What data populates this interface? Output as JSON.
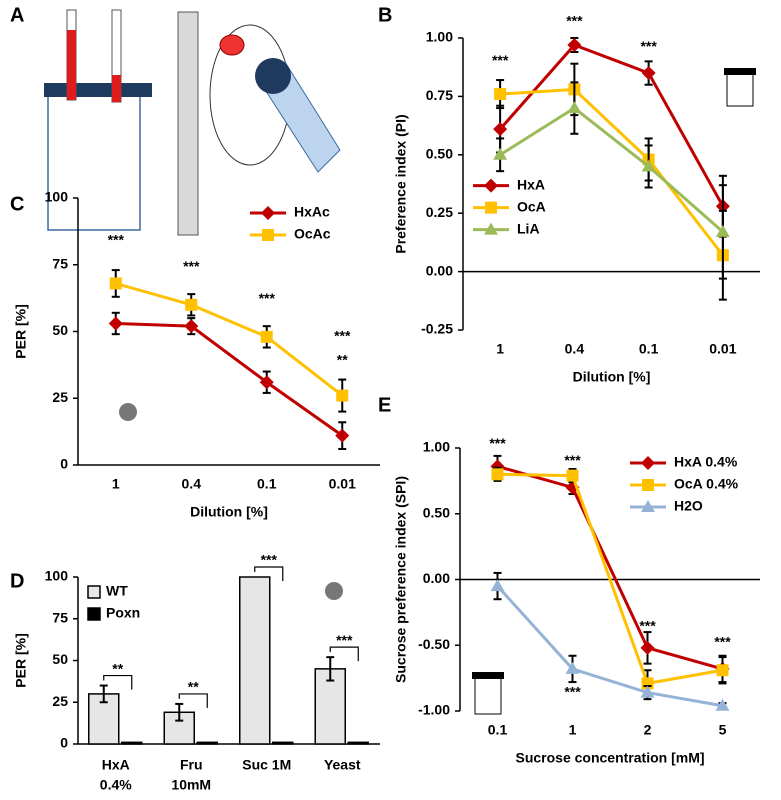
{
  "illustration": {
    "panel": "A"
  },
  "chart_data": [
    {
      "type": "line",
      "panel": "B",
      "ylabel": "Preference index (PI)",
      "xlabel": "Dilution [%]",
      "categories": [
        "1",
        "0.4",
        "0.1",
        "0.01"
      ],
      "ylim": [
        -0.25,
        1.0
      ],
      "yticks": [
        {
          "value": -0.25,
          "label": "-0.25"
        },
        {
          "value": 0,
          "label": "0.00"
        },
        {
          "value": 0.25,
          "label": "0.25"
        },
        {
          "value": 0.5,
          "label": "0.50"
        },
        {
          "value": 0.75,
          "label": "0.75"
        },
        {
          "value": 1.0,
          "label": "1.00"
        }
      ],
      "legend": "lower left",
      "series": [
        {
          "name": "HxA",
          "color": "#c00000",
          "marker": "diamond",
          "values": [
            0.61,
            0.97,
            0.85,
            0.28
          ],
          "errors": [
            0.1,
            0.03,
            0.05,
            0.13
          ]
        },
        {
          "name": "OcA",
          "color": "#ffc000",
          "marker": "square",
          "values": [
            0.76,
            0.78,
            0.48,
            0.07
          ],
          "errors": [
            0.06,
            0.11,
            0.09,
            0.19
          ]
        },
        {
          "name": "LiA",
          "color": "#9bbb59",
          "marker": "triangle",
          "values": [
            0.5,
            0.7,
            0.45,
            0.17
          ],
          "errors": [
            0.07,
            0.11,
            0.09,
            0.2
          ]
        }
      ],
      "annotations": [
        {
          "text": "***",
          "x": "1",
          "y": 0.9
        },
        {
          "text": "***",
          "x": "0.4",
          "y": 1.07
        },
        {
          "text": "***",
          "x": "0.1",
          "y": 0.96
        }
      ]
    },
    {
      "type": "line",
      "panel": "C",
      "ylabel": "PER [%]",
      "xlabel": "Dilution [%]",
      "categories": [
        "1",
        "0.4",
        "0.1",
        "0.01"
      ],
      "ylim": [
        0,
        100
      ],
      "yticks": [
        0,
        25,
        50,
        75,
        100
      ],
      "legend": "upper right",
      "series": [
        {
          "name": "HxAc",
          "color": "#c00000",
          "marker": "diamond",
          "values": [
            53,
            52,
            31,
            11
          ],
          "errors": [
            4,
            3,
            4,
            5
          ]
        },
        {
          "name": "OcAc",
          "color": "#ffc000",
          "marker": "square",
          "values": [
            68,
            60,
            48,
            26
          ],
          "errors": [
            5,
            4,
            4,
            6
          ]
        }
      ],
      "annotations": [
        {
          "text": "***",
          "x": "1",
          "y": 84
        },
        {
          "text": "***",
          "x": "0.4",
          "y": 74
        },
        {
          "text": "***",
          "x": "0.1",
          "y": 62
        },
        {
          "text": "***",
          "x": "0.01",
          "y": 48
        },
        {
          "text": "**",
          "x": "0.01",
          "y": 39
        }
      ]
    },
    {
      "type": "bar",
      "panel": "D",
      "ylabel": "PER [%]",
      "categories": [
        [
          "HxA",
          "0.4%"
        ],
        [
          "Fru",
          "10mM"
        ],
        [
          "Suc 1M"
        ],
        [
          "Yeast"
        ]
      ],
      "ylim": [
        0,
        100
      ],
      "yticks": [
        0,
        25,
        50,
        75,
        100
      ],
      "legend": "upper left",
      "series": [
        {
          "name": "WT",
          "color": "#e6e6e6",
          "values": [
            30,
            19,
            100,
            45
          ],
          "errors": [
            5,
            5,
            0,
            7
          ]
        },
        {
          "name": "Poxn",
          "color": "#000000",
          "values": [
            1,
            1,
            1,
            1
          ],
          "errors": [
            0,
            0,
            0,
            0
          ]
        }
      ],
      "significance": [
        "**",
        "**",
        "***",
        "***"
      ]
    },
    {
      "type": "line",
      "panel": "E",
      "ylabel": "Sucrose preference index (SPI)",
      "xlabel": "Sucrose concentration [mM]",
      "categories": [
        "0.1",
        "1",
        "2",
        "5"
      ],
      "ylim": [
        -1.0,
        1.0
      ],
      "yticks": [
        {
          "value": -1.0,
          "label": "-1.00"
        },
        {
          "value": -0.5,
          "label": "-0.50"
        },
        {
          "value": 0,
          "label": "0.00"
        },
        {
          "value": 0.5,
          "label": "0.50"
        },
        {
          "value": 1.0,
          "label": "1.00"
        }
      ],
      "legend": "upper right",
      "series": [
        {
          "name": "HxA 0.4%",
          "color": "#c00000",
          "marker": "diamond",
          "values": [
            0.86,
            0.7,
            -0.52,
            -0.68
          ],
          "errors": [
            0.08,
            0.05,
            0.12,
            0.1
          ]
        },
        {
          "name": "OcA 0.4%",
          "color": "#ffc000",
          "marker": "square",
          "values": [
            0.8,
            0.79,
            -0.79,
            -0.69
          ],
          "errors": [
            0.05,
            0.05,
            0.1,
            0.1
          ]
        },
        {
          "name": "H2O",
          "color": "#95b3d7",
          "marker": "triangle",
          "values": [
            -0.05,
            -0.68,
            -0.86,
            -0.96
          ],
          "errors": [
            0.1,
            0.1,
            0.05,
            0.02
          ]
        }
      ],
      "annotations": [
        {
          "text": "***",
          "x": "0.1",
          "y": 1.03
        },
        {
          "text": "***",
          "x": "1",
          "y": 0.9
        },
        {
          "text": "***",
          "x": "2",
          "y": -0.36
        },
        {
          "text": "***",
          "x": "5",
          "y": -0.48
        },
        {
          "text": "***",
          "x": "1",
          "y": -0.86
        }
      ]
    }
  ]
}
